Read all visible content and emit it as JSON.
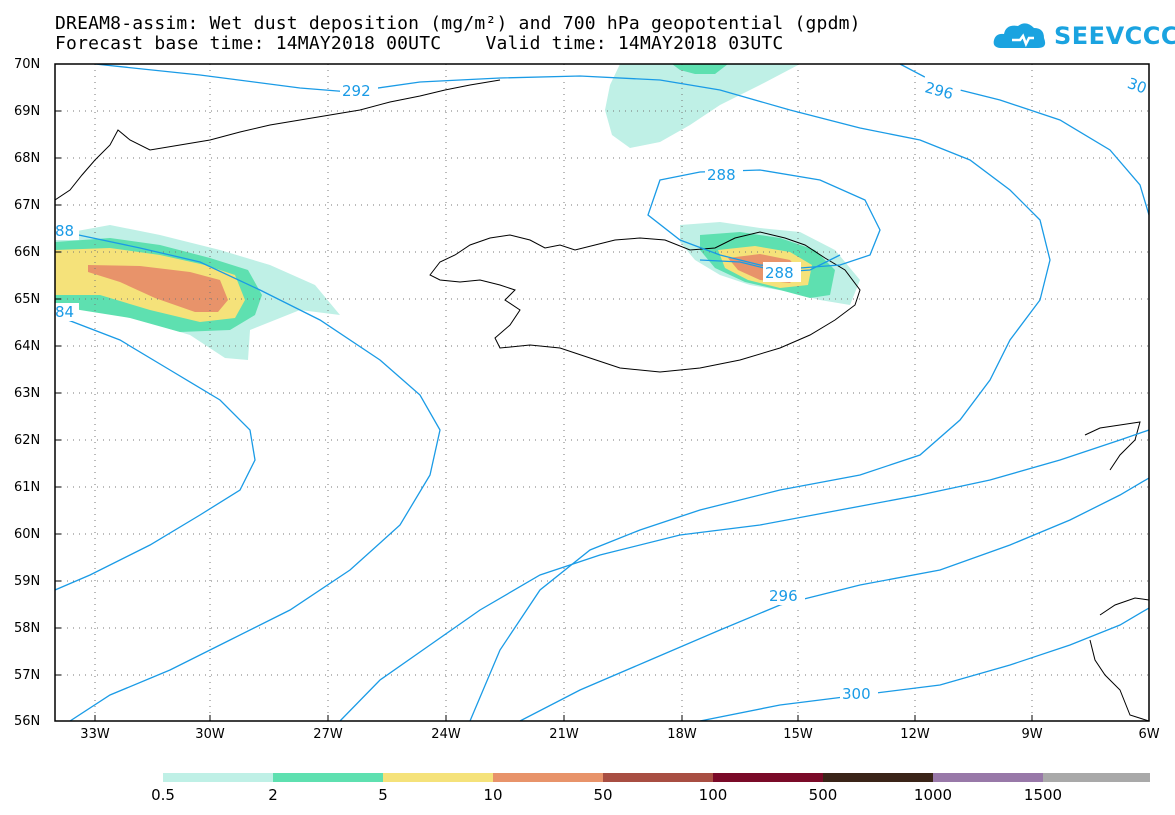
{
  "title": {
    "line1": "DREAM8-assim: Wet dust deposition (mg/m²) and 700 hPa geopotential (gpdm)",
    "line2": "Forecast base time: 14MAY2018 00UTC    Valid time: 14MAY2018 03UTC"
  },
  "logo": {
    "text": "SEEVCCC"
  },
  "map": {
    "lat_labels": [
      "70N",
      "69N",
      "68N",
      "67N",
      "66N",
      "65N",
      "64N",
      "63N",
      "62N",
      "61N",
      "60N",
      "59N",
      "58N",
      "57N",
      "56N"
    ],
    "lon_labels": [
      "33W",
      "30W",
      "27W",
      "24W",
      "21W",
      "18W",
      "15W",
      "12W",
      "9W",
      "6W"
    ],
    "contour_labels": [
      "292",
      "296",
      "30",
      "288",
      "288",
      "296",
      "300",
      "88",
      "84"
    ],
    "contour_color": "#1a9be6"
  },
  "colorbar": {
    "labels": [
      "0.5",
      "2",
      "5",
      "10",
      "50",
      "100",
      "500",
      "1000",
      "1500"
    ],
    "colors": [
      "#bff0e6",
      "#5ee0b0",
      "#f5e27a",
      "#e8936a",
      "#a84e42",
      "#7a0a28",
      "#3a2418",
      "#9878a8",
      "#a9a9a9"
    ]
  }
}
